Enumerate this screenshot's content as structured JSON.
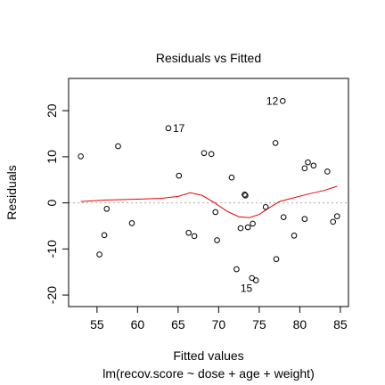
{
  "chart_data": {
    "type": "scatter",
    "title": "Residuals vs Fitted",
    "xlabel": "Fitted values",
    "sublabel": "lm(recov.score ~ dose + age + weight)",
    "ylabel": "Residuals",
    "xlim": [
      51.5,
      86.0
    ],
    "ylim": [
      -22.5,
      27.0
    ],
    "xticks": [
      55,
      60,
      65,
      70,
      75,
      80,
      85
    ],
    "yticks": [
      -20,
      -10,
      0,
      10,
      20
    ],
    "reference_line": {
      "y": 0,
      "style": "dotted",
      "color": "#aaaaaa"
    },
    "points": [
      {
        "x": 53.0,
        "y": 10.1
      },
      {
        "x": 55.3,
        "y": -11.2
      },
      {
        "x": 55.9,
        "y": -7.0
      },
      {
        "x": 56.2,
        "y": -1.3
      },
      {
        "x": 57.6,
        "y": 12.3
      },
      {
        "x": 59.3,
        "y": -4.4
      },
      {
        "x": 63.8,
        "y": 16.2
      },
      {
        "x": 65.1,
        "y": 5.9
      },
      {
        "x": 66.3,
        "y": -6.5
      },
      {
        "x": 67.0,
        "y": -7.2
      },
      {
        "x": 68.2,
        "y": 10.8
      },
      {
        "x": 69.1,
        "y": 10.6
      },
      {
        "x": 69.6,
        "y": -2.0
      },
      {
        "x": 69.8,
        "y": -8.1
      },
      {
        "x": 71.6,
        "y": 5.5
      },
      {
        "x": 72.2,
        "y": -14.4
      },
      {
        "x": 72.7,
        "y": -5.5
      },
      {
        "x": 73.2,
        "y": 1.8
      },
      {
        "x": 73.3,
        "y": 1.6
      },
      {
        "x": 73.6,
        "y": -5.3
      },
      {
        "x": 74.1,
        "y": -16.3
      },
      {
        "x": 74.2,
        "y": -4.5
      },
      {
        "x": 74.6,
        "y": -16.8
      },
      {
        "x": 75.8,
        "y": -0.9
      },
      {
        "x": 77.0,
        "y": 13.0
      },
      {
        "x": 77.1,
        "y": -12.2
      },
      {
        "x": 77.9,
        "y": 22.1
      },
      {
        "x": 78.0,
        "y": -3.1
      },
      {
        "x": 79.3,
        "y": -7.1
      },
      {
        "x": 80.6,
        "y": -3.5
      },
      {
        "x": 80.6,
        "y": 7.5
      },
      {
        "x": 81.0,
        "y": 8.8
      },
      {
        "x": 81.7,
        "y": 8.1
      },
      {
        "x": 83.4,
        "y": 6.8
      },
      {
        "x": 84.1,
        "y": -4.1
      },
      {
        "x": 84.6,
        "y": -2.9
      }
    ],
    "point_labels": [
      {
        "text": "12",
        "x": 77.9,
        "y": 22.1,
        "side": "left"
      },
      {
        "text": "17",
        "x": 63.8,
        "y": 16.2,
        "side": "right"
      },
      {
        "text": "15",
        "x": 74.6,
        "y": -16.8,
        "side": "left-below"
      }
    ],
    "smoother": {
      "color": "#ee0000",
      "x": [
        53.0,
        56.0,
        60.0,
        63.0,
        65.0,
        66.5,
        68.0,
        69.5,
        71.0,
        72.5,
        73.8,
        75.0,
        76.0,
        77.5,
        79.0,
        81.0,
        83.0,
        84.6
      ],
      "y": [
        0.3,
        0.6,
        0.8,
        1.0,
        1.4,
        2.2,
        1.6,
        0.0,
        -1.8,
        -3.0,
        -3.2,
        -2.5,
        -1.3,
        0.3,
        1.0,
        1.9,
        2.7,
        3.6
      ]
    }
  }
}
